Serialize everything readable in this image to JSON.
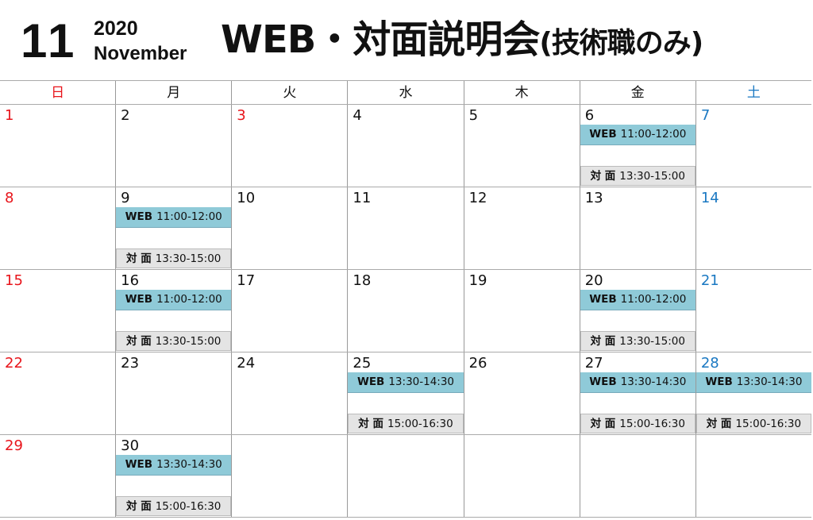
{
  "header": {
    "month": "11",
    "year": "2020",
    "month_name": "November",
    "title": "WEB・対面説明会",
    "title_sub": "(技術職のみ)"
  },
  "colors": {
    "sunday": "#e8141b",
    "saturday": "#1a78c2",
    "web_bar": "#8fcad8",
    "face_bar": "#e4e4e4"
  },
  "weekdays": [
    "日",
    "月",
    "火",
    "水",
    "木",
    "金",
    "土"
  ],
  "weeks": [
    [
      {
        "day": "1",
        "red": true
      },
      {
        "day": "2"
      },
      {
        "day": "3",
        "red": true
      },
      {
        "day": "4"
      },
      {
        "day": "5"
      },
      {
        "day": "6",
        "web": "11:00-12:00",
        "face": "13:30-15:00"
      },
      {
        "day": "7",
        "blue": true
      }
    ],
    [
      {
        "day": "8",
        "red": true
      },
      {
        "day": "9",
        "web": "11:00-12:00",
        "face": "13:30-15:00"
      },
      {
        "day": "10"
      },
      {
        "day": "11"
      },
      {
        "day": "12"
      },
      {
        "day": "13"
      },
      {
        "day": "14",
        "blue": true
      }
    ],
    [
      {
        "day": "15",
        "red": true
      },
      {
        "day": "16",
        "web": "11:00-12:00",
        "face": "13:30-15:00"
      },
      {
        "day": "17"
      },
      {
        "day": "18"
      },
      {
        "day": "19"
      },
      {
        "day": "20",
        "web": "11:00-12:00",
        "face": "13:30-15:00"
      },
      {
        "day": "21",
        "blue": true
      }
    ],
    [
      {
        "day": "22",
        "red": true
      },
      {
        "day": "23"
      },
      {
        "day": "24"
      },
      {
        "day": "25",
        "web": "13:30-14:30",
        "face": "15:00-16:30"
      },
      {
        "day": "26"
      },
      {
        "day": "27",
        "web": "13:30-14:30",
        "face": "15:00-16:30"
      },
      {
        "day": "28",
        "blue": true,
        "web": "13:30-14:30",
        "face": "15:00-16:30"
      }
    ],
    [
      {
        "day": "29",
        "red": true
      },
      {
        "day": "30",
        "web": "13:30-14:30",
        "face": "15:00-16:30"
      },
      {},
      {},
      {},
      {},
      {}
    ]
  ],
  "labels": {
    "web": "WEB",
    "face": "対 面"
  }
}
